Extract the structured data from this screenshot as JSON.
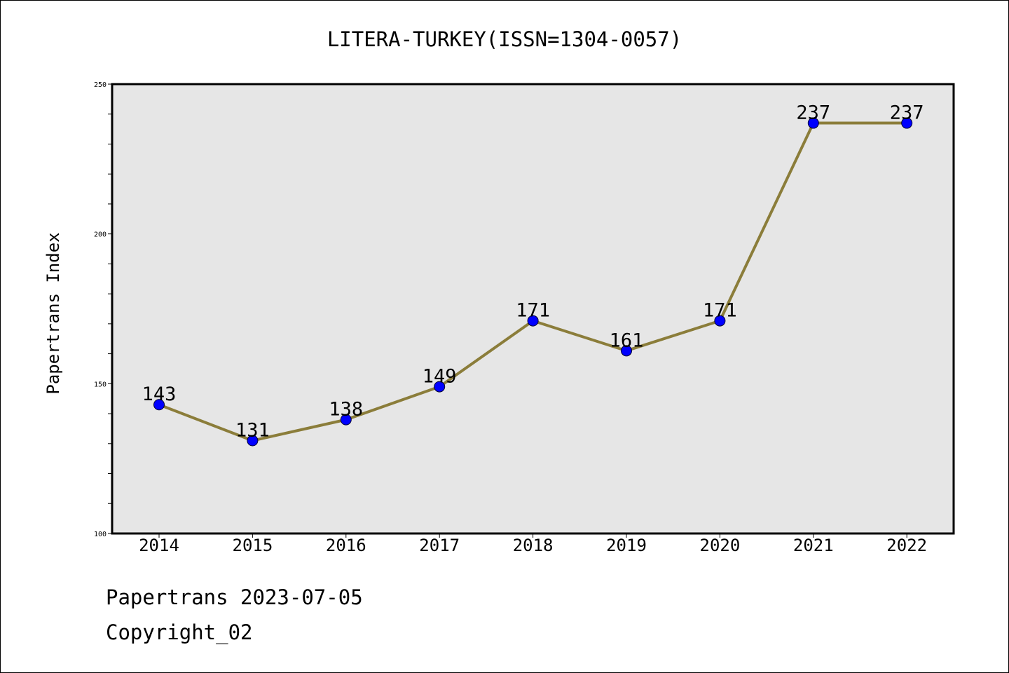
{
  "chart_data": {
    "type": "line",
    "title": "LITERA-TURKEY(ISSN=1304-0057)",
    "xlabel": "",
    "ylabel": "Papertrans Index",
    "categories": [
      "2014",
      "2015",
      "2016",
      "2017",
      "2018",
      "2019",
      "2020",
      "2021",
      "2022"
    ],
    "values": [
      143,
      131,
      138,
      149,
      171,
      161,
      171,
      237,
      237
    ],
    "ylim": [
      100,
      250
    ],
    "y_ticks": [
      100,
      150,
      200,
      250
    ],
    "y_minor_step": 10,
    "grid": false,
    "line_color": "#8b7d3a",
    "marker_color": "#0000ff",
    "plot_background": "#e6e6e6"
  },
  "footer": {
    "date_line": "Papertrans 2023-07-05",
    "copyright_line": "Copyright_02"
  }
}
